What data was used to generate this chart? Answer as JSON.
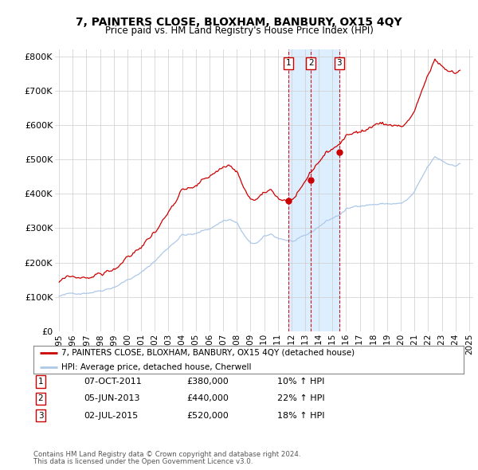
{
  "title": "7, PAINTERS CLOSE, BLOXHAM, BANBURY, OX15 4QY",
  "subtitle": "Price paid vs. HM Land Registry's House Price Index (HPI)",
  "legend_line1": "7, PAINTERS CLOSE, BLOXHAM, BANBURY, OX15 4QY (detached house)",
  "legend_line2": "HPI: Average price, detached house, Cherwell",
  "footnote1": "Contains HM Land Registry data © Crown copyright and database right 2024.",
  "footnote2": "This data is licensed under the Open Government Licence v3.0.",
  "transactions": [
    {
      "num": 1,
      "date": "07-OCT-2011",
      "price": "£380,000",
      "pct": "10%",
      "year": 2011.77,
      "price_val": 380000
    },
    {
      "num": 2,
      "date": "05-JUN-2013",
      "price": "£440,000",
      "pct": "22%",
      "year": 2013.43,
      "price_val": 440000
    },
    {
      "num": 3,
      "date": "02-JUL-2015",
      "price": "£520,000",
      "pct": "18%",
      "year": 2015.5,
      "price_val": 520000
    }
  ],
  "hpi_color": "#adc8e8",
  "price_color": "#cc0000",
  "shade_color": "#ddeeff",
  "transaction_color": "#cc0000",
  "grid_color": "#cccccc",
  "background_color": "#ffffff",
  "ylim": [
    0,
    820000
  ],
  "yticks": [
    0,
    100000,
    200000,
    300000,
    400000,
    500000,
    600000,
    700000,
    800000
  ],
  "ytick_labels": [
    "£0",
    "£100K",
    "£200K",
    "£300K",
    "£400K",
    "£500K",
    "£600K",
    "£700K",
    "£800K"
  ],
  "xlim": [
    1994.7,
    2025.3
  ],
  "hpi_seed": 42,
  "price_seed": 99
}
